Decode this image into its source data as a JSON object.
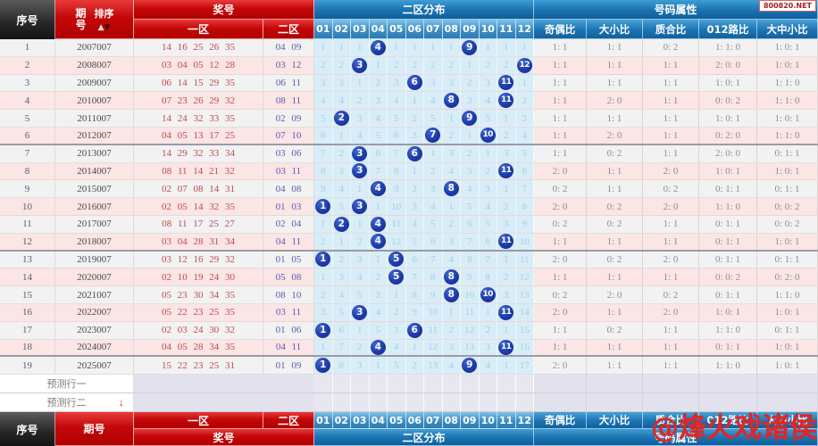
{
  "badge": "800820.NET",
  "watermark": "@烽火戏诸侯",
  "labels": {
    "seq": "序号",
    "period": "期号",
    "sort": "排序",
    "sort_up": "▲",
    "sort_down": "▼",
    "prize": "奖号",
    "zone1": "一区",
    "zone2": "二区",
    "dist_title": "二区分布",
    "attr_title": "号码属性"
  },
  "dist_cols": [
    "01",
    "02",
    "03",
    "04",
    "05",
    "06",
    "07",
    "08",
    "09",
    "10",
    "11",
    "12"
  ],
  "attr_cols": [
    "奇偶比",
    "大小比",
    "质合比",
    "012路比",
    "大中小比"
  ],
  "pred_rows": [
    {
      "label": "预测行一",
      "arrow": ""
    },
    {
      "label": "预测行二",
      "arrow": "↓"
    }
  ],
  "rows": [
    {
      "seq": "1",
      "period": "2007007",
      "front": "14 16 25 26 35",
      "back": "04 09",
      "balls": [
        4,
        9
      ],
      "miss": [
        1,
        1,
        1,
        4,
        1,
        1,
        1,
        1,
        9,
        1,
        1,
        1
      ],
      "attrs": [
        "1: 1",
        "1: 1",
        "0: 2",
        "1: 1: 0",
        "1: 0: 1"
      ]
    },
    {
      "seq": "2",
      "period": "2008007",
      "front": "03 04 05 12 28",
      "back": "03 12",
      "balls": [
        3,
        12
      ],
      "miss": [
        2,
        2,
        3,
        1,
        2,
        2,
        2,
        2,
        1,
        2,
        2,
        12
      ],
      "attrs": [
        "1: 1",
        "1: 1",
        "1: 1",
        "2: 0: 0",
        "1: 0: 1"
      ]
    },
    {
      "seq": "3",
      "period": "2009007",
      "front": "06 14 15 29 35",
      "back": "06 11",
      "balls": [
        6,
        11
      ],
      "miss": [
        3,
        3,
        1,
        2,
        3,
        6,
        3,
        3,
        2,
        3,
        11,
        1
      ],
      "attrs": [
        "1: 1",
        "1: 1",
        "1: 1",
        "1: 0: 1",
        "1: 1: 0"
      ]
    },
    {
      "seq": "4",
      "period": "2010007",
      "front": "07 23 26 29 32",
      "back": "08 11",
      "balls": [
        8,
        11
      ],
      "miss": [
        4,
        4,
        2,
        3,
        4,
        1,
        4,
        8,
        3,
        4,
        11,
        2
      ],
      "attrs": [
        "1: 1",
        "2: 0",
        "1: 1",
        "0: 0: 2",
        "1: 1: 0"
      ]
    },
    {
      "seq": "5",
      "period": "2011007",
      "front": "14 24 32 33 35",
      "back": "02 09",
      "balls": [
        2,
        9
      ],
      "miss": [
        5,
        2,
        3,
        4,
        5,
        2,
        5,
        1,
        9,
        5,
        1,
        3
      ],
      "attrs": [
        "1: 1",
        "1: 1",
        "1: 1",
        "1: 0: 1",
        "1: 0: 1"
      ]
    },
    {
      "seq": "6",
      "period": "2012007",
      "front": "04 05 13 17 25",
      "back": "07 10",
      "balls": [
        7,
        10
      ],
      "miss": [
        6,
        1,
        4,
        5,
        6,
        3,
        7,
        2,
        1,
        10,
        2,
        4
      ],
      "attrs": [
        "1: 1",
        "2: 0",
        "1: 1",
        "0: 2: 0",
        "1: 1: 0"
      ]
    },
    {
      "seq": "7",
      "period": "2013007",
      "front": "14 29 32 33 34",
      "back": "03 06",
      "balls": [
        3,
        6
      ],
      "miss": [
        7,
        2,
        3,
        6,
        7,
        6,
        1,
        3,
        2,
        1,
        3,
        5
      ],
      "attrs": [
        "1: 1",
        "0: 2",
        "1: 1",
        "2: 0: 0",
        "0: 1: 1"
      ]
    },
    {
      "seq": "8",
      "period": "2014007",
      "front": "08 11 14 21 32",
      "back": "03 11",
      "balls": [
        3,
        11
      ],
      "miss": [
        8,
        3,
        3,
        7,
        8,
        1,
        2,
        4,
        3,
        2,
        11,
        6
      ],
      "attrs": [
        "2: 0",
        "1: 1",
        "2: 0",
        "1: 0: 1",
        "1: 0: 1"
      ]
    },
    {
      "seq": "9",
      "period": "2015007",
      "front": "02 07 08 14 31",
      "back": "04 08",
      "balls": [
        4,
        8
      ],
      "miss": [
        9,
        4,
        1,
        4,
        9,
        2,
        3,
        8,
        4,
        3,
        1,
        7
      ],
      "attrs": [
        "0: 2",
        "1: 1",
        "0: 2",
        "0: 1: 1",
        "0: 1: 1"
      ]
    },
    {
      "seq": "10",
      "period": "2016007",
      "front": "02 05 14 32 35",
      "back": "01 03",
      "balls": [
        1,
        3
      ],
      "miss": [
        1,
        5,
        3,
        1,
        10,
        3,
        4,
        1,
        5,
        4,
        2,
        8
      ],
      "attrs": [
        "2: 0",
        "0: 2",
        "2: 0",
        "1: 1: 0",
        "0: 0: 2"
      ]
    },
    {
      "seq": "11",
      "period": "2017007",
      "front": "08 11 17 25 27",
      "back": "02 04",
      "balls": [
        2,
        4
      ],
      "miss": [
        1,
        2,
        1,
        4,
        11,
        4,
        5,
        2,
        6,
        5,
        3,
        9
      ],
      "attrs": [
        "0: 2",
        "0: 2",
        "1: 1",
        "0: 1: 1",
        "0: 0: 2"
      ]
    },
    {
      "seq": "12",
      "period": "2018007",
      "front": "03 04 28 31 34",
      "back": "04 11",
      "balls": [
        4,
        11
      ],
      "miss": [
        2,
        1,
        2,
        4,
        12,
        5,
        6,
        3,
        7,
        6,
        11,
        10
      ],
      "attrs": [
        "1: 1",
        "1: 1",
        "1: 1",
        "0: 1: 1",
        "1: 0: 1"
      ]
    },
    {
      "seq": "13",
      "period": "2019007",
      "front": "03 12 16 29 32",
      "back": "01 05",
      "balls": [
        1,
        5
      ],
      "miss": [
        1,
        2,
        3,
        1,
        5,
        6,
        7,
        4,
        8,
        7,
        1,
        11
      ],
      "attrs": [
        "2: 0",
        "0: 2",
        "2: 0",
        "0: 1: 1",
        "0: 1: 1"
      ]
    },
    {
      "seq": "14",
      "period": "2020007",
      "front": "02 10 19 24 30",
      "back": "05 08",
      "balls": [
        5,
        8
      ],
      "miss": [
        1,
        3,
        4,
        2,
        5,
        7,
        8,
        8,
        9,
        8,
        2,
        12
      ],
      "attrs": [
        "1: 1",
        "1: 1",
        "1: 1",
        "0: 0: 2",
        "0: 2: 0"
      ]
    },
    {
      "seq": "15",
      "period": "2021007",
      "front": "05 23 30 34 35",
      "back": "08 10",
      "balls": [
        8,
        10
      ],
      "miss": [
        2,
        4,
        5,
        3,
        1,
        8,
        9,
        8,
        10,
        10,
        3,
        13
      ],
      "attrs": [
        "0: 2",
        "2: 0",
        "0: 2",
        "0: 1: 1",
        "1: 1: 0"
      ]
    },
    {
      "seq": "16",
      "period": "2022007",
      "front": "05 22 23 25 35",
      "back": "03 11",
      "balls": [
        3,
        11
      ],
      "miss": [
        3,
        5,
        3,
        4,
        2,
        9,
        10,
        1,
        11,
        1,
        11,
        14
      ],
      "attrs": [
        "2: 0",
        "1: 1",
        "2: 0",
        "1: 0: 1",
        "1: 0: 1"
      ]
    },
    {
      "seq": "17",
      "period": "2023007",
      "front": "02 03 24 30 32",
      "back": "01 06",
      "balls": [
        1,
        6
      ],
      "miss": [
        1,
        6,
        1,
        5,
        3,
        6,
        11,
        2,
        12,
        2,
        1,
        15
      ],
      "attrs": [
        "1: 1",
        "0: 2",
        "1: 1",
        "1: 1: 0",
        "0: 1: 1"
      ]
    },
    {
      "seq": "18",
      "period": "2024007",
      "front": "04 05 28 34 35",
      "back": "04 11",
      "balls": [
        4,
        11
      ],
      "miss": [
        1,
        7,
        2,
        4,
        4,
        1,
        12,
        3,
        13,
        3,
        11,
        16
      ],
      "attrs": [
        "1: 1",
        "1: 1",
        "1: 1",
        "0: 1: 1",
        "1: 0: 1"
      ]
    },
    {
      "seq": "19",
      "period": "2025007",
      "front": "15 22 23 25 31",
      "back": "01 09",
      "balls": [
        1,
        9
      ],
      "miss": [
        1,
        8,
        3,
        1,
        5,
        2,
        13,
        4,
        9,
        4,
        1,
        17
      ],
      "attrs": [
        "2: 0",
        "1: 1",
        "1: 1",
        "1: 1: 0",
        "1: 0: 1"
      ]
    }
  ]
}
